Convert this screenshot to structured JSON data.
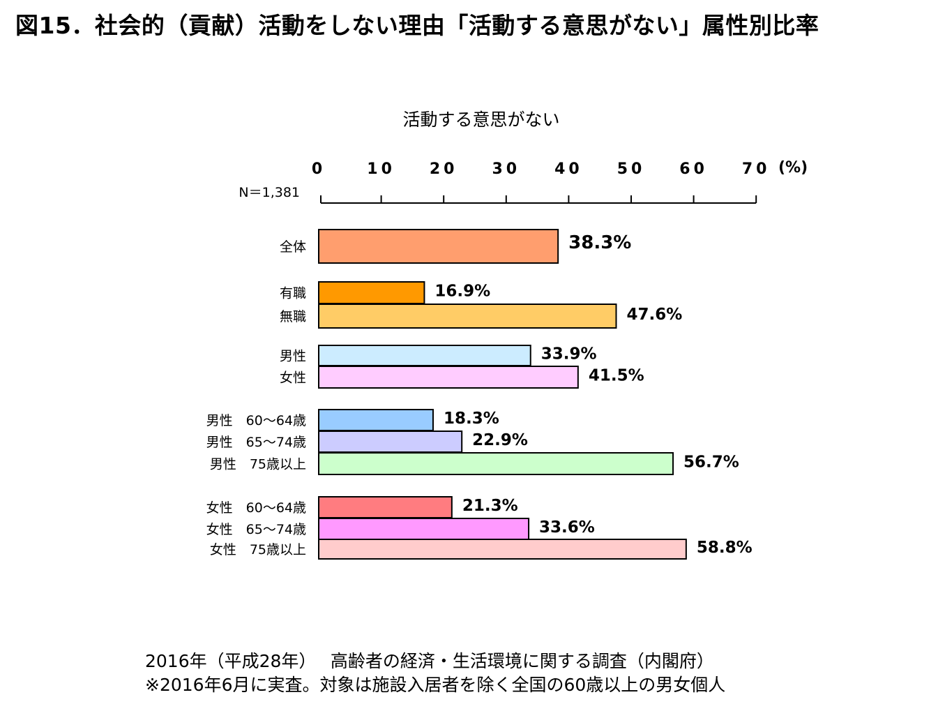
{
  "figure_title": "図15．社会的（貢献）活動をしない理由「活動する意思がない」属性別比率",
  "sample_size_label": "N＝1,381",
  "footer": {
    "source": "2016年（平成28年）　 高齢者の経済・生活環境に関する調査（内閣府）",
    "note": "※2016年6月に実査。対象は施設入居者を除く全国の60歳以上の男女個人"
  },
  "chart_data": {
    "type": "bar",
    "orientation": "horizontal",
    "title": "活動する意思がない",
    "unit_label": "(%)",
    "xlim": [
      0,
      70
    ],
    "ticks": [
      "0",
      "10",
      "20",
      "30",
      "40",
      "50",
      "60",
      "70"
    ],
    "tick_values": [
      0,
      10,
      20,
      30,
      40,
      50,
      60,
      70
    ],
    "axis_position": "top",
    "grid": false,
    "legend": "none",
    "categories": [
      "全体",
      "有職",
      "無職",
      "男性",
      "女性",
      "男性　60～64歳",
      "男性　65～74歳",
      "男性　75歳以上",
      "女性　60～64歳",
      "女性　65～74歳",
      "女性　75歳以上"
    ],
    "values": [
      38.3,
      16.9,
      47.6,
      33.9,
      41.5,
      18.3,
      22.9,
      56.7,
      21.3,
      33.6,
      58.8
    ],
    "value_labels": [
      "38.3%",
      "16.9%",
      "47.6%",
      "33.9%",
      "41.5%",
      "18.3%",
      "22.9%",
      "56.7%",
      "21.3%",
      "33.6%",
      "58.8%"
    ],
    "colors": [
      "#FF9E6E",
      "#FF9900",
      "#FFCC66",
      "#CCECFF",
      "#FFCCFF",
      "#99CCFF",
      "#CCCCFF",
      "#CCFFCC",
      "#FF7C80",
      "#FF99FF",
      "#FFCCCC"
    ],
    "groups": [
      [
        0
      ],
      [
        1,
        2
      ],
      [
        3,
        4
      ],
      [
        5,
        6,
        7
      ],
      [
        8,
        9,
        10
      ]
    ]
  }
}
